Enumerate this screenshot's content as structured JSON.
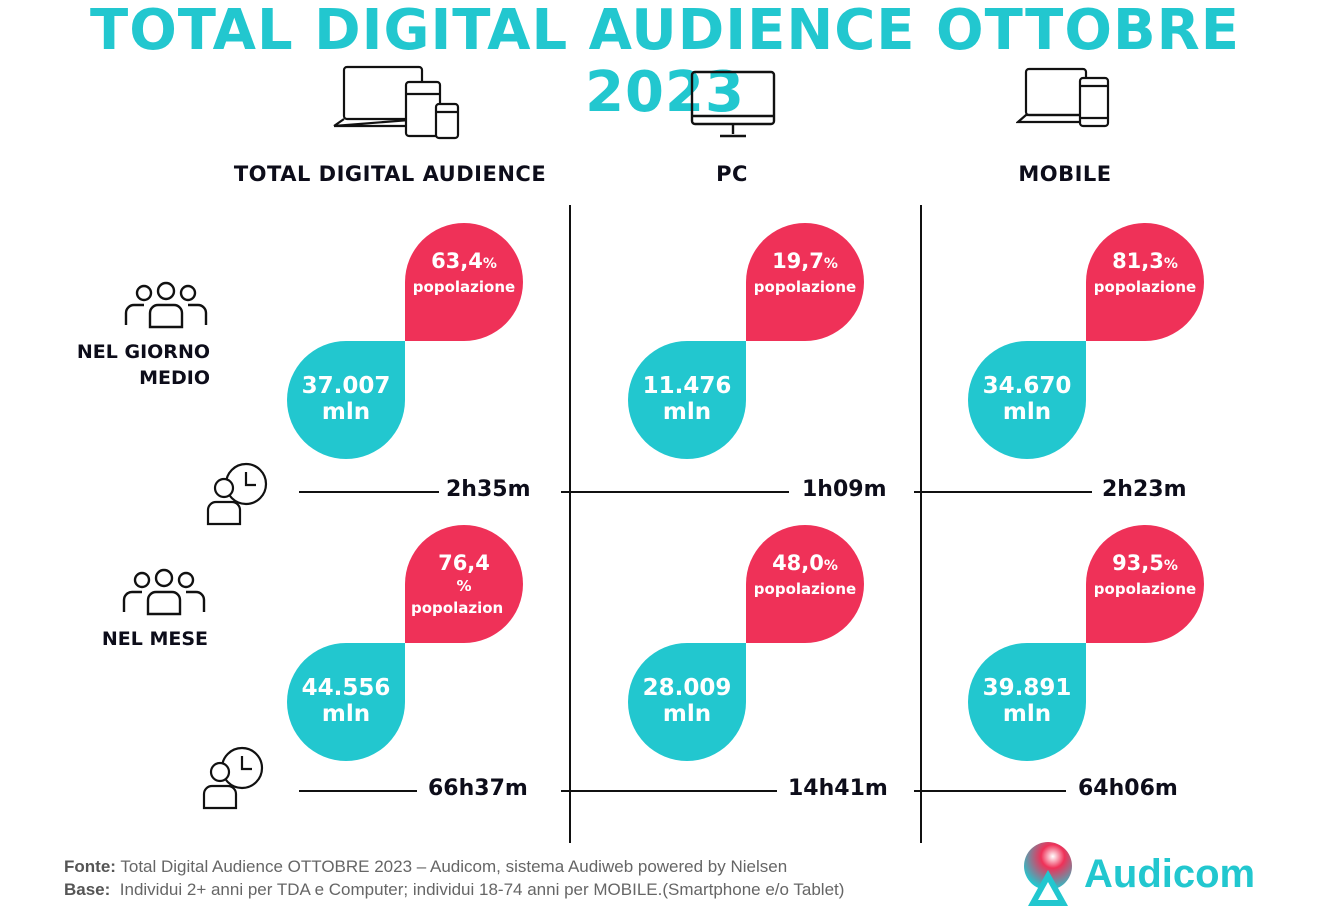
{
  "title": "TOTAL DIGITAL AUDIENCE OTTOBRE 2023",
  "columns": [
    {
      "label": "TOTAL DIGITAL AUDIENCE",
      "icon": "devices-icon"
    },
    {
      "label": "PC",
      "icon": "monitor-icon"
    },
    {
      "label": "MOBILE",
      "icon": "laptop-phone-icon"
    }
  ],
  "rows": [
    {
      "label_line1": "NEL GIORNO",
      "label_line2": "MEDIO"
    },
    {
      "label_line1": "NEL MESE",
      "label_line2": ""
    }
  ],
  "cells": {
    "day": [
      {
        "pct": "63,4",
        "pct_unit": "%",
        "pop": "popolazione",
        "num": "37.007",
        "unit": "mln",
        "time": "2h35m"
      },
      {
        "pct": "19,7",
        "pct_unit": "%",
        "pop": "popolazione",
        "num": "11.476",
        "unit": "mln",
        "time": "1h09m"
      },
      {
        "pct": "81,3",
        "pct_unit": "%",
        "pop": "popolazione",
        "num": "34.670",
        "unit": "mln",
        "time": "2h23m"
      }
    ],
    "month": [
      {
        "pct": "76,4",
        "pct_unit": "%",
        "pop": "popolazion",
        "num": "44.556",
        "unit": "mln",
        "time": "66h37m"
      },
      {
        "pct": "48,0",
        "pct_unit": "%",
        "pop": "popolazione",
        "num": "28.009",
        "unit": "mln",
        "time": "14h41m"
      },
      {
        "pct": "93,5",
        "pct_unit": "%",
        "pop": "popolazione",
        "num": "39.891",
        "unit": "mln",
        "time": "64h06m"
      }
    ]
  },
  "footer": {
    "fonte_label": "Fonte:",
    "fonte_text": "Total Digital Audience OTTOBRE 2023 – Audicom, sistema Audiweb powered by Nielsen",
    "base_label": "Base:",
    "base_text": "Individui 2+ anni per TDA e Computer; individui 18-74 anni per MOBILE.(Smartphone e/o Tablet)"
  },
  "logo": {
    "text": "Audicom"
  },
  "colors": {
    "teal": "#22c7cf",
    "red": "#ef3158",
    "dark": "#0d0d1a"
  }
}
